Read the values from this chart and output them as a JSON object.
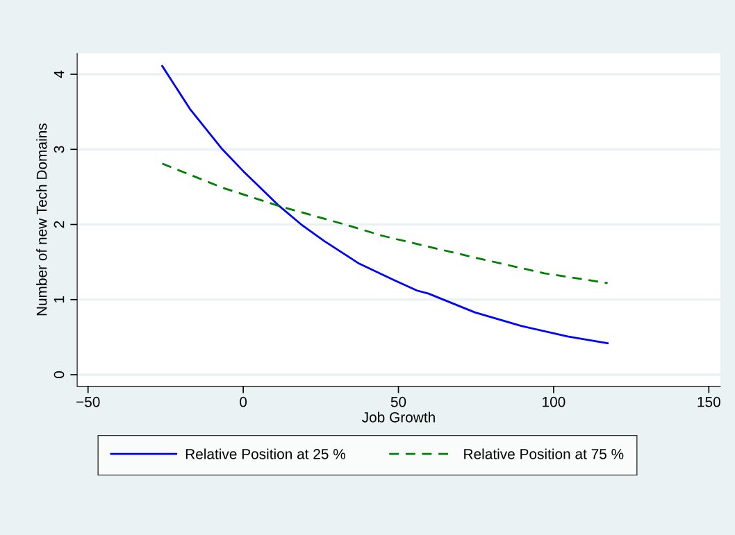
{
  "chart_data": {
    "type": "line",
    "xlabel": "Job Growth",
    "ylabel": "Number of new Tech Domains",
    "xlim": [
      -53.5,
      153.7
    ],
    "ylim": [
      -0.154,
      4.28
    ],
    "xticks": [
      {
        "value": -50,
        "label": "−50"
      },
      0,
      50,
      100,
      150
    ],
    "yticks": [
      0,
      1,
      2,
      3,
      4
    ],
    "grid": "y",
    "legend": "bottom",
    "series": [
      {
        "name": "Relative Position at 25 %",
        "color": "#0000ff",
        "line_style": "solid",
        "x": [
          -26.1,
          -17.2,
          -6.7,
          0,
          11.2,
          18.7,
          26.1,
          37.3,
          48.5,
          56.0,
          59.7,
          74.6,
          89.5,
          104.5,
          117.4
        ],
        "values": [
          4.11,
          3.54,
          3.0,
          2.71,
          2.26,
          2.0,
          1.78,
          1.48,
          1.26,
          1.12,
          1.08,
          0.83,
          0.65,
          0.51,
          0.42
        ]
      },
      {
        "name": "Relative Position at 75 %",
        "color": "#008000",
        "line_style": "dashed",
        "x": [
          -26.1,
          -6.7,
          11.2,
          33.6,
          44.8,
          56.0,
          74.6,
          97.0,
          117.4
        ],
        "values": [
          2.81,
          2.49,
          2.25,
          1.99,
          1.85,
          1.74,
          1.56,
          1.35,
          1.22
        ]
      }
    ]
  }
}
